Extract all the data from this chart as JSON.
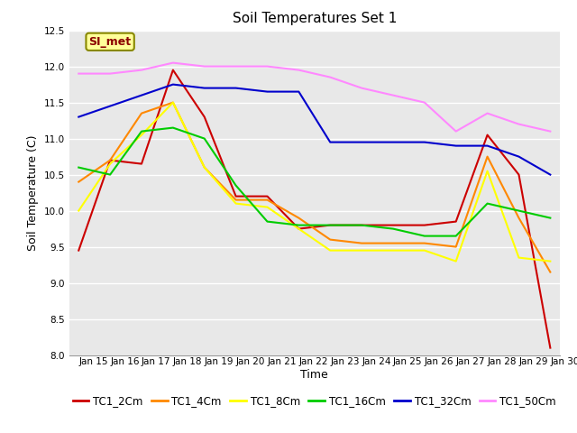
{
  "title": "Soil Temperatures Set 1",
  "xlabel": "Time",
  "ylabel": "Soil Temperature (C)",
  "ylim": [
    8.0,
    12.5
  ],
  "annotation": "SI_met",
  "x_labels": [
    "Jan 15",
    "Jan 16",
    "Jan 17",
    "Jan 18",
    "Jan 19",
    "Jan 20",
    "Jan 21",
    "Jan 22",
    "Jan 23",
    "Jan 24",
    "Jan 25",
    "Jan 26",
    "Jan 27",
    "Jan 28",
    "Jan 29",
    "Jan 30"
  ],
  "series": {
    "TC1_2Cm": {
      "color": "#cc0000",
      "values": [
        9.45,
        10.7,
        10.65,
        11.95,
        11.3,
        10.2,
        10.2,
        9.75,
        9.8,
        9.8,
        9.8,
        9.8,
        9.85,
        11.05,
        10.5,
        8.1
      ]
    },
    "TC1_4Cm": {
      "color": "#ff8800",
      "values": [
        10.4,
        10.7,
        11.35,
        11.5,
        10.6,
        10.15,
        10.15,
        9.9,
        9.6,
        9.55,
        9.55,
        9.55,
        9.5,
        10.75,
        9.9,
        9.15
      ]
    },
    "TC1_8Cm": {
      "color": "#ffff00",
      "values": [
        10.0,
        10.65,
        11.05,
        11.5,
        10.6,
        10.1,
        10.05,
        9.75,
        9.45,
        9.45,
        9.45,
        9.45,
        9.3,
        10.55,
        9.35,
        9.3
      ]
    },
    "TC1_16Cm": {
      "color": "#00cc00",
      "values": [
        10.6,
        10.5,
        11.1,
        11.15,
        11.0,
        10.35,
        9.85,
        9.8,
        9.8,
        9.8,
        9.75,
        9.65,
        9.65,
        10.1,
        10.0,
        9.9
      ]
    },
    "TC1_32Cm": {
      "color": "#0000cc",
      "values": [
        11.3,
        11.45,
        11.6,
        11.75,
        11.7,
        11.7,
        11.65,
        11.65,
        10.95,
        10.95,
        10.95,
        10.95,
        10.9,
        10.9,
        10.75,
        10.5
      ]
    },
    "TC1_50Cm": {
      "color": "#ff88ff",
      "values": [
        11.9,
        11.9,
        11.95,
        12.05,
        12.0,
        12.0,
        12.0,
        11.95,
        11.85,
        11.7,
        11.6,
        11.5,
        11.1,
        11.35,
        11.2,
        11.1
      ]
    }
  },
  "background_color": "#ffffff",
  "plot_bg_color": "#e8e8e8",
  "title_fontsize": 11,
  "axis_fontsize": 9,
  "tick_fontsize": 7.5,
  "legend_fontsize": 8.5
}
